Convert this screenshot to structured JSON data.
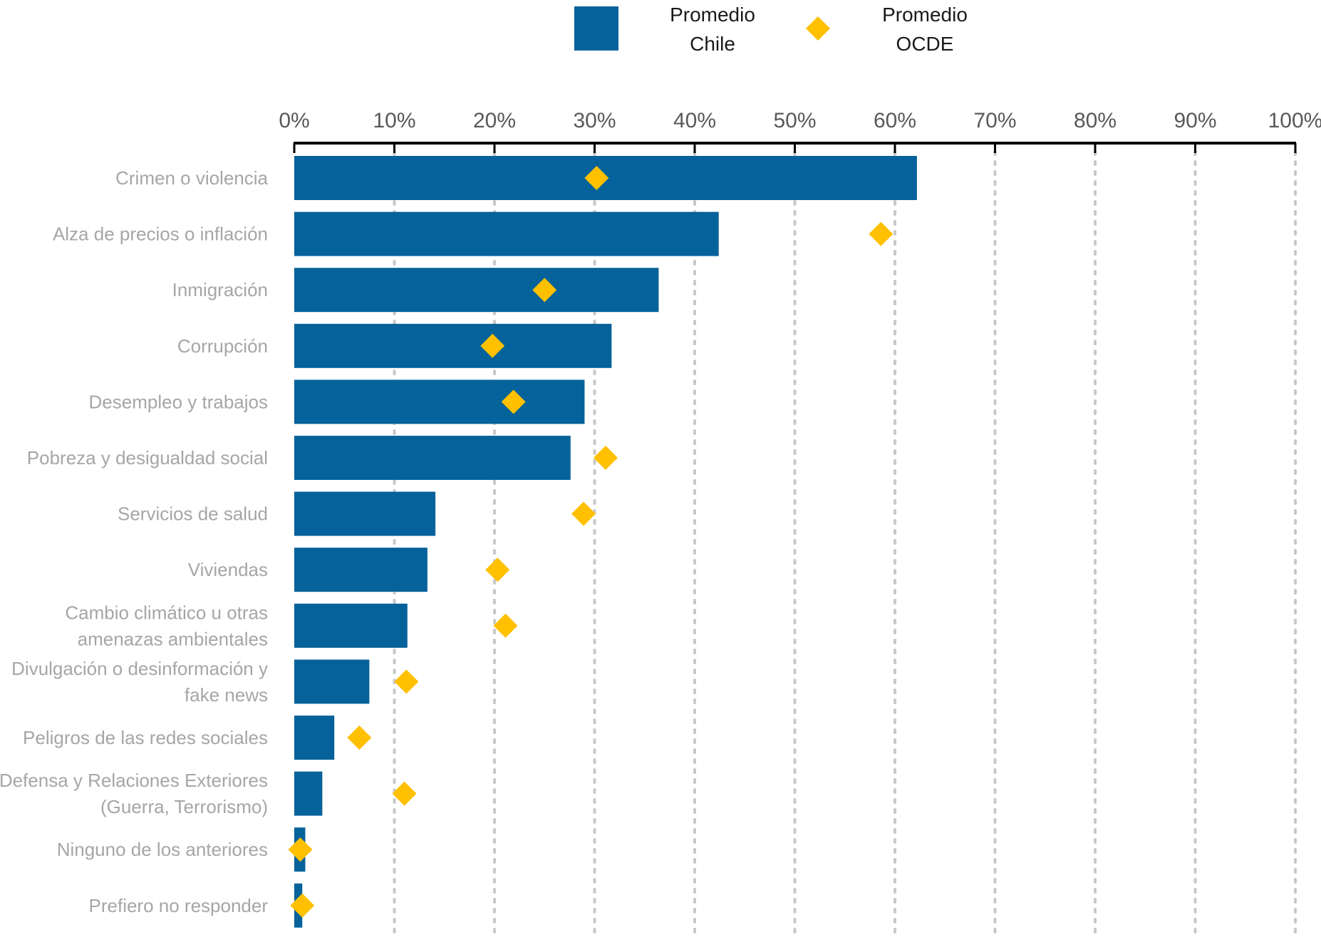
{
  "chart_data": {
    "type": "bar",
    "orientation": "horizontal",
    "title": "",
    "xlabel": "",
    "ylabel": "",
    "xlim": [
      0,
      100
    ],
    "x_ticks": [
      0,
      10,
      20,
      30,
      40,
      50,
      60,
      70,
      80,
      90,
      100
    ],
    "x_tick_format": "{v}%",
    "grid": true,
    "legend_position": "top",
    "legend": [
      {
        "name": "Promedio Chile",
        "lines": [
          "Promedio",
          "Chile"
        ],
        "marker": "square"
      },
      {
        "name": "Promedio OCDE",
        "lines": [
          "Promedio",
          "OCDE"
        ],
        "marker": "diamond"
      }
    ],
    "colors": {
      "chile": "#05629A",
      "ocde": "#FFC000",
      "axis": "#000000",
      "grid": "#c8c8c8"
    },
    "categories": [
      {
        "lines": [
          "Crimen o violencia"
        ]
      },
      {
        "lines": [
          "Alza de precios o inflación"
        ]
      },
      {
        "lines": [
          "Inmigración"
        ]
      },
      {
        "lines": [
          "Corrupción"
        ]
      },
      {
        "lines": [
          "Desempleo y trabajos"
        ]
      },
      {
        "lines": [
          "Pobreza y desigualdad social"
        ]
      },
      {
        "lines": [
          "Servicios de salud"
        ]
      },
      {
        "lines": [
          "Viviendas"
        ]
      },
      {
        "lines": [
          "Cambio climático u otras",
          "amenazas ambientales"
        ]
      },
      {
        "lines": [
          "Divulgación o desinformación y",
          "fake news"
        ]
      },
      {
        "lines": [
          "Peligros de las redes sociales"
        ]
      },
      {
        "lines": [
          "Defensa y Relaciones Exteriores",
          "(Guerra, Terrorismo)"
        ]
      },
      {
        "lines": [
          "Ninguno de los anteriores"
        ]
      },
      {
        "lines": [
          "Prefiero no responder"
        ]
      }
    ],
    "series": [
      {
        "name": "Promedio Chile",
        "type": "bar",
        "values": [
          62.2,
          42.4,
          36.4,
          31.7,
          29.0,
          27.6,
          14.1,
          13.3,
          11.3,
          7.5,
          4.0,
          2.8,
          1.1,
          0.8
        ]
      },
      {
        "name": "Promedio OCDE",
        "type": "marker",
        "values": [
          30.2,
          58.6,
          25.0,
          19.8,
          21.9,
          31.1,
          28.9,
          20.3,
          21.1,
          11.2,
          6.5,
          11.0,
          0.6,
          0.8
        ]
      }
    ]
  }
}
